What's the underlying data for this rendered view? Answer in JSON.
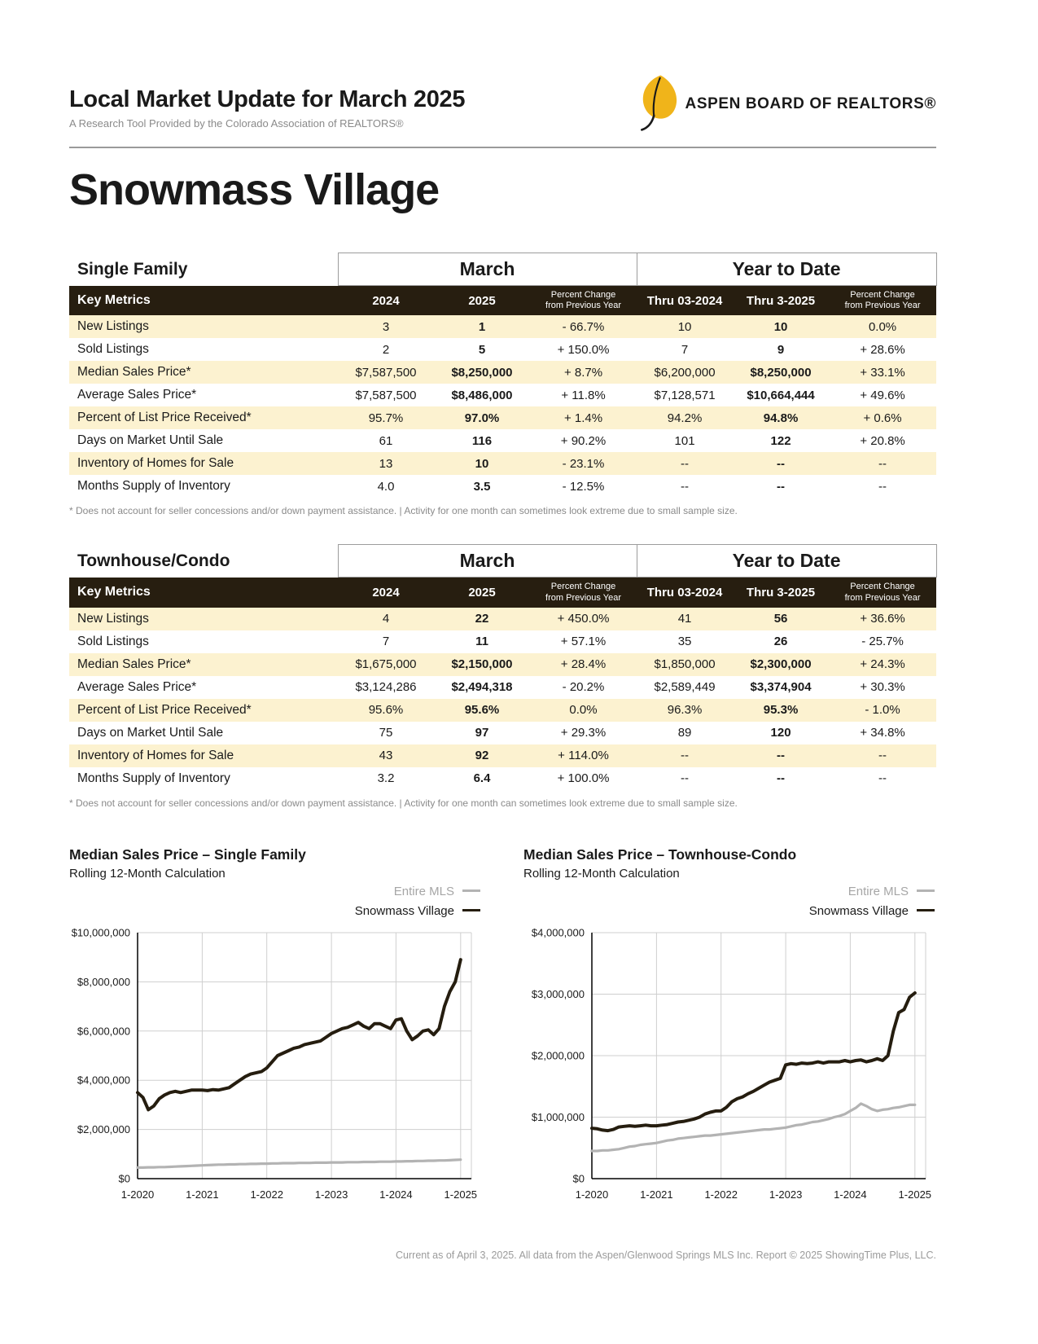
{
  "header": {
    "title": "Local Market Update for March 2025",
    "subtitle": "A Research Tool Provided by the Colorado Association of REALTORS®",
    "logo": {
      "org": "ASPEN BOARD OF REALTORS®"
    }
  },
  "region": "Snowmass Village",
  "tables": [
    {
      "section": "Single Family",
      "period_groups": [
        "March",
        "Year to Date"
      ],
      "header": {
        "metrics": "Key Metrics",
        "cols": [
          "2024",
          "2025",
          "Percent Change\nfrom Previous Year",
          "Thru 03-2024",
          "Thru 3-2025",
          "Percent Change\nfrom Previous Year"
        ]
      },
      "rows": [
        [
          "New Listings",
          "3",
          "1",
          "- 66.7%",
          "10",
          "10",
          "0.0%"
        ],
        [
          "Sold Listings",
          "2",
          "5",
          "+ 150.0%",
          "7",
          "9",
          "+ 28.6%"
        ],
        [
          "Median Sales Price*",
          "$7,587,500",
          "$8,250,000",
          "+ 8.7%",
          "$6,200,000",
          "$8,250,000",
          "+ 33.1%"
        ],
        [
          "Average Sales Price*",
          "$7,587,500",
          "$8,486,000",
          "+ 11.8%",
          "$7,128,571",
          "$10,664,444",
          "+ 49.6%"
        ],
        [
          "Percent of List Price Received*",
          "95.7%",
          "97.0%",
          "+ 1.4%",
          "94.2%",
          "94.8%",
          "+ 0.6%"
        ],
        [
          "Days on Market Until Sale",
          "61",
          "116",
          "+ 90.2%",
          "101",
          "122",
          "+ 20.8%"
        ],
        [
          "Inventory of Homes for Sale",
          "13",
          "10",
          "- 23.1%",
          "--",
          "--",
          "--"
        ],
        [
          "Months Supply of Inventory",
          "4.0",
          "3.5",
          "- 12.5%",
          "--",
          "--",
          "--"
        ]
      ],
      "footnote": "* Does not account for seller concessions and/or down payment assistance. | Activity for one month can sometimes look extreme due to small sample size."
    },
    {
      "section": "Townhouse/Condo",
      "period_groups": [
        "March",
        "Year to Date"
      ],
      "header": {
        "metrics": "Key Metrics",
        "cols": [
          "2024",
          "2025",
          "Percent Change\nfrom Previous Year",
          "Thru 03-2024",
          "Thru 3-2025",
          "Percent Change\nfrom Previous Year"
        ]
      },
      "rows": [
        [
          "New Listings",
          "4",
          "22",
          "+ 450.0%",
          "41",
          "56",
          "+ 36.6%"
        ],
        [
          "Sold Listings",
          "7",
          "11",
          "+ 57.1%",
          "35",
          "26",
          "- 25.7%"
        ],
        [
          "Median Sales Price*",
          "$1,675,000",
          "$2,150,000",
          "+ 28.4%",
          "$1,850,000",
          "$2,300,000",
          "+ 24.3%"
        ],
        [
          "Average Sales Price*",
          "$3,124,286",
          "$2,494,318",
          "- 20.2%",
          "$2,589,449",
          "$3,374,904",
          "+ 30.3%"
        ],
        [
          "Percent of List Price Received*",
          "95.6%",
          "95.6%",
          "0.0%",
          "96.3%",
          "95.3%",
          "- 1.0%"
        ],
        [
          "Days on Market Until Sale",
          "75",
          "97",
          "+ 29.3%",
          "89",
          "120",
          "+ 34.8%"
        ],
        [
          "Inventory of Homes for Sale",
          "43",
          "92",
          "+ 114.0%",
          "--",
          "--",
          "--"
        ],
        [
          "Months Supply of Inventory",
          "3.2",
          "6.4",
          "+ 100.0%",
          "--",
          "--",
          "--"
        ]
      ],
      "footnote": "* Does not account for seller concessions and/or down payment assistance. | Activity for one month can sometimes look extreme due to small sample size."
    }
  ],
  "chart_data": [
    {
      "type": "line",
      "title": "Median Sales Price – Single Family",
      "subtitle": "Rolling 12-Month Calculation",
      "x_ticks": [
        "1-2020",
        "1-2021",
        "1-2022",
        "1-2023",
        "1-2024",
        "1-2025"
      ],
      "y_tick_labels": [
        "$0",
        "$2,000,000",
        "$4,000,000",
        "$6,000,000",
        "$8,000,000",
        "$10,000,000"
      ],
      "ylim_millions": [
        0,
        10
      ],
      "units": "millions_usd",
      "grid": true,
      "legend_position": "top-right",
      "series": [
        {
          "name": "Entire MLS",
          "color": "#b3b3b3",
          "values_millions": [
            0.45,
            0.45,
            0.46,
            0.46,
            0.47,
            0.47,
            0.48,
            0.49,
            0.5,
            0.51,
            0.52,
            0.53,
            0.54,
            0.55,
            0.56,
            0.57,
            0.57,
            0.58,
            0.58,
            0.59,
            0.59,
            0.6,
            0.6,
            0.61,
            0.61,
            0.62,
            0.62,
            0.63,
            0.63,
            0.63,
            0.64,
            0.64,
            0.64,
            0.65,
            0.65,
            0.65,
            0.66,
            0.66,
            0.66,
            0.67,
            0.67,
            0.67,
            0.68,
            0.68,
            0.68,
            0.69,
            0.69,
            0.69,
            0.7,
            0.7,
            0.71,
            0.71,
            0.72,
            0.72,
            0.73,
            0.73,
            0.74,
            0.74,
            0.75,
            0.76,
            0.77
          ]
        },
        {
          "name": "Snowmass Village",
          "color": "#251d0f",
          "values_millions": [
            3.5,
            3.3,
            2.8,
            2.95,
            3.25,
            3.4,
            3.5,
            3.55,
            3.5,
            3.55,
            3.6,
            3.6,
            3.6,
            3.58,
            3.62,
            3.6,
            3.65,
            3.7,
            3.85,
            4.0,
            4.15,
            4.25,
            4.3,
            4.35,
            4.5,
            4.75,
            5.0,
            5.1,
            5.2,
            5.3,
            5.35,
            5.45,
            5.5,
            5.55,
            5.6,
            5.75,
            5.9,
            6.0,
            6.1,
            6.15,
            6.25,
            6.35,
            6.2,
            6.1,
            6.3,
            6.3,
            6.2,
            6.1,
            6.45,
            6.5,
            6.0,
            5.65,
            5.8,
            6.0,
            6.05,
            5.85,
            6.1,
            7.0,
            7.6,
            8.0,
            8.9
          ]
        }
      ]
    },
    {
      "type": "line",
      "title": "Median Sales Price – Townhouse-Condo",
      "subtitle": "Rolling 12-Month Calculation",
      "x_ticks": [
        "1-2020",
        "1-2021",
        "1-2022",
        "1-2023",
        "1-2024",
        "1-2025"
      ],
      "y_tick_labels": [
        "$0",
        "$1,000,000",
        "$2,000,000",
        "$3,000,000",
        "$4,000,000"
      ],
      "ylim_millions": [
        0,
        4
      ],
      "units": "millions_usd",
      "grid": true,
      "legend_position": "top-right",
      "series": [
        {
          "name": "Entire MLS",
          "color": "#b3b3b3",
          "values_millions": [
            0.45,
            0.45,
            0.46,
            0.46,
            0.47,
            0.48,
            0.5,
            0.52,
            0.53,
            0.55,
            0.56,
            0.57,
            0.58,
            0.6,
            0.62,
            0.63,
            0.65,
            0.66,
            0.67,
            0.68,
            0.69,
            0.7,
            0.7,
            0.71,
            0.72,
            0.73,
            0.74,
            0.75,
            0.76,
            0.77,
            0.78,
            0.79,
            0.8,
            0.8,
            0.81,
            0.82,
            0.83,
            0.85,
            0.87,
            0.88,
            0.9,
            0.92,
            0.93,
            0.95,
            0.97,
            1.0,
            1.02,
            1.05,
            1.1,
            1.15,
            1.22,
            1.18,
            1.13,
            1.1,
            1.12,
            1.13,
            1.15,
            1.16,
            1.18,
            1.2,
            1.2
          ]
        },
        {
          "name": "Snowmass Village",
          "color": "#251d0f",
          "values_millions": [
            0.82,
            0.81,
            0.79,
            0.78,
            0.8,
            0.84,
            0.85,
            0.86,
            0.85,
            0.86,
            0.87,
            0.86,
            0.86,
            0.87,
            0.88,
            0.9,
            0.92,
            0.93,
            0.95,
            0.97,
            1.0,
            1.05,
            1.08,
            1.1,
            1.1,
            1.16,
            1.25,
            1.3,
            1.33,
            1.38,
            1.42,
            1.47,
            1.52,
            1.57,
            1.6,
            1.63,
            1.85,
            1.87,
            1.86,
            1.88,
            1.87,
            1.88,
            1.9,
            1.88,
            1.9,
            1.9,
            1.9,
            1.92,
            1.9,
            1.92,
            1.93,
            1.9,
            1.92,
            1.95,
            1.92,
            2.0,
            2.4,
            2.7,
            2.75,
            2.95,
            3.02
          ]
        }
      ]
    }
  ],
  "footer": "Current as of April 3, 2025. All data from the Aspen/Glenwood Springs MLS Inc. Report © 2025 ShowingTime Plus, LLC.",
  "colors": {
    "table_header_bg": "#271e10",
    "row_stripe": "#fcf2d0",
    "logo_gold": "#f0b41a",
    "series_dark": "#251d0f",
    "series_gray": "#b3b3b3"
  }
}
